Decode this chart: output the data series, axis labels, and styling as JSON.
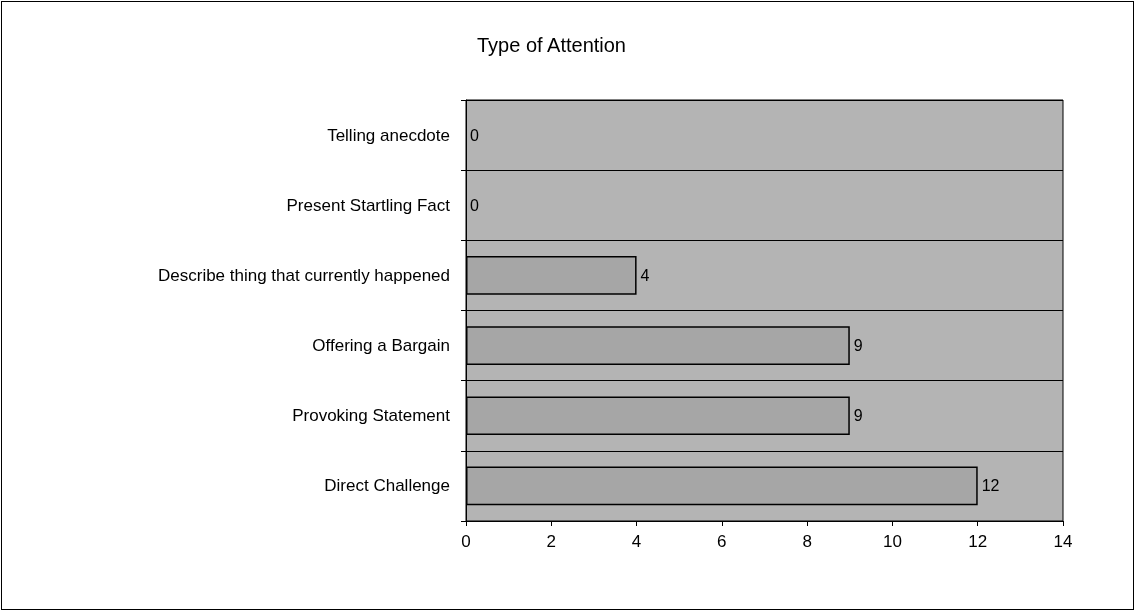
{
  "chart_data": {
    "type": "bar",
    "orientation": "horizontal",
    "title": "Type of Attention",
    "categories": [
      "Telling anecdote",
      "Present Startling Fact",
      "Describe thing that currently happened",
      "Offering a Bargain",
      "Provoking Statement",
      "Direct Challenge"
    ],
    "values": [
      0,
      0,
      4,
      9,
      9,
      12
    ],
    "color": "#a6a6a6",
    "xlim": [
      0,
      14
    ],
    "xticks": [
      0,
      2,
      4,
      6,
      8,
      10,
      12,
      14
    ],
    "grid": "y",
    "data_labels": true
  }
}
